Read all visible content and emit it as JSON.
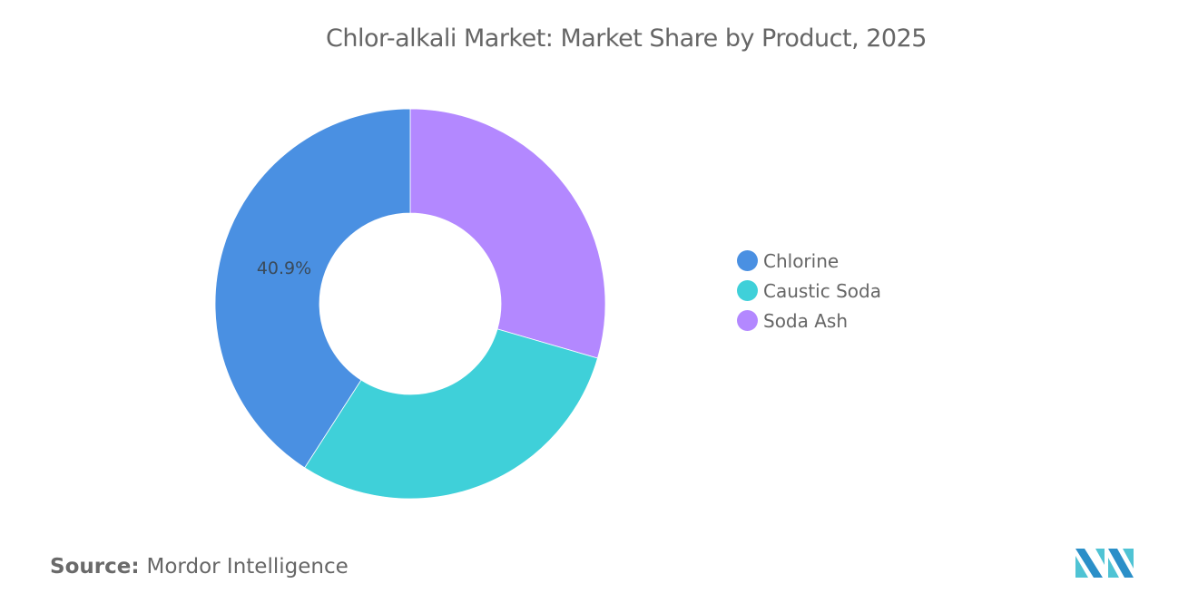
{
  "title": "Chlor-alkali Market: Market Share by Product, 2025",
  "source": {
    "key": "Source:",
    "value": "Mordor Intelligence"
  },
  "legend": [
    {
      "label": "Chlorine",
      "color": "#4A90E2"
    },
    {
      "label": "Caustic Soda",
      "color": "#3FD0D9"
    },
    {
      "label": "Soda Ash",
      "color": "#B388FF"
    }
  ],
  "data_label": "40.9%",
  "chart_data": {
    "type": "pie",
    "subtype": "donut",
    "title": "Chlor-alkali Market: Market Share by Product, 2025",
    "categories": [
      "Chlorine",
      "Caustic Soda",
      "Soda Ash"
    ],
    "values": [
      40.9,
      29.6,
      29.5
    ],
    "colors": [
      "#4A90E2",
      "#3FD0D9",
      "#B388FF"
    ],
    "data_labels": [
      "40.9%",
      "",
      ""
    ],
    "legend_position": "right",
    "unit": "%",
    "source": "Mordor Intelligence"
  }
}
